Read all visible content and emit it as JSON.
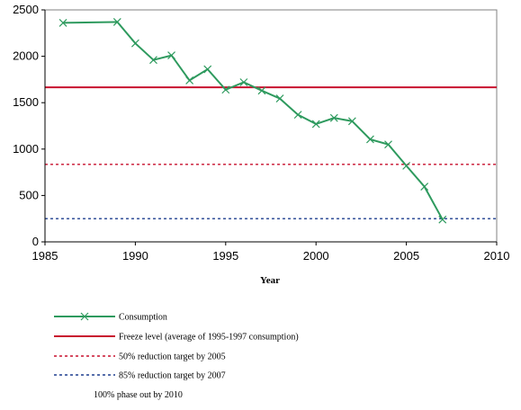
{
  "chart_data": {
    "type": "line",
    "title": "",
    "xlabel": "Year",
    "ylabel": "",
    "xlim": [
      1985,
      2010
    ],
    "ylim": [
      0,
      2500
    ],
    "xticks": [
      1985,
      1990,
      1995,
      2000,
      2005,
      2010
    ],
    "yticks": [
      0,
      500,
      1000,
      1500,
      2000,
      2500
    ],
    "grid": false,
    "legend_position": "bottom",
    "series": [
      {
        "name": "Consumption",
        "color": "#2e9a5e",
        "marker": "x",
        "x": [
          1986,
          1989,
          1990,
          1991,
          1992,
          1993,
          1994,
          1995,
          1996,
          1997,
          1998,
          1999,
          2000,
          2001,
          2002,
          2003,
          2004,
          2005,
          2006,
          2007
        ],
        "y": [
          2360,
          2370,
          2140,
          1960,
          2010,
          1740,
          1860,
          1640,
          1720,
          1630,
          1545,
          1370,
          1270,
          1335,
          1300,
          1105,
          1050,
          820,
          595,
          240
        ]
      }
    ],
    "reference_lines": [
      {
        "name": "Freeze level (average of 1995-1997 consumption)",
        "value": 1665,
        "color": "#c8102e",
        "style": "solid"
      },
      {
        "name": "50% reduction target by 2005",
        "value": 835,
        "color": "#c8102e",
        "style": "dotted"
      },
      {
        "name": "85% reduction target by 2007",
        "value": 250,
        "color": "#1f3f8f",
        "style": "dotted"
      }
    ],
    "legend_note": "100% phase out by 2010"
  }
}
